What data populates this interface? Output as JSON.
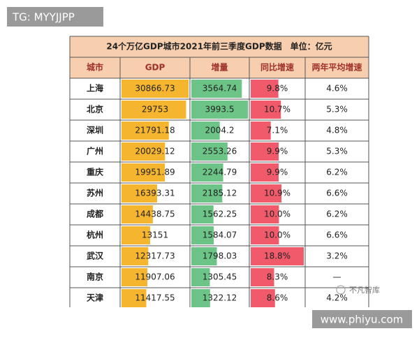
{
  "watermark_top": "TG: MYYJJPP",
  "watermark_bottom": "www.phiyu.com",
  "logo": "不凡智库",
  "table": {
    "title": "24个万亿GDP城市2021年前三季度GDP数据　单位：亿元",
    "headers": [
      "城市",
      "GDP",
      "增量",
      "同比增速",
      "两年平均增速"
    ],
    "rows": [
      [
        "上海",
        "30866.73",
        "3564.74",
        "9.8%",
        "4.6%"
      ],
      [
        "北京",
        "29753",
        "3993.5",
        "10.7%",
        "5.3%"
      ],
      [
        "深圳",
        "21791.18",
        "2004.2",
        "7.1%",
        "4.8%"
      ],
      [
        "广州",
        "20029.12",
        "2553.26",
        "9.9%",
        "5.3%"
      ],
      [
        "重庆",
        "19951.89",
        "2244.79",
        "9.9%",
        "6.2%"
      ],
      [
        "苏州",
        "16393.31",
        "2185.12",
        "10.9%",
        "6.6%"
      ],
      [
        "成都",
        "14438.75",
        "1562.25",
        "10.0%",
        "6.2%"
      ],
      [
        "杭州",
        "13151",
        "1584.07",
        "10.0%",
        "6.6%"
      ],
      [
        "武汉",
        "12317.73",
        "1798.03",
        "18.8%",
        "3.2%"
      ],
      [
        "南京",
        "11907.06",
        "1305.45",
        "8.3%",
        "—"
      ],
      [
        "天津",
        "11417.55",
        "1322.12",
        "8.6%",
        "4.2%"
      ]
    ]
  }
}
